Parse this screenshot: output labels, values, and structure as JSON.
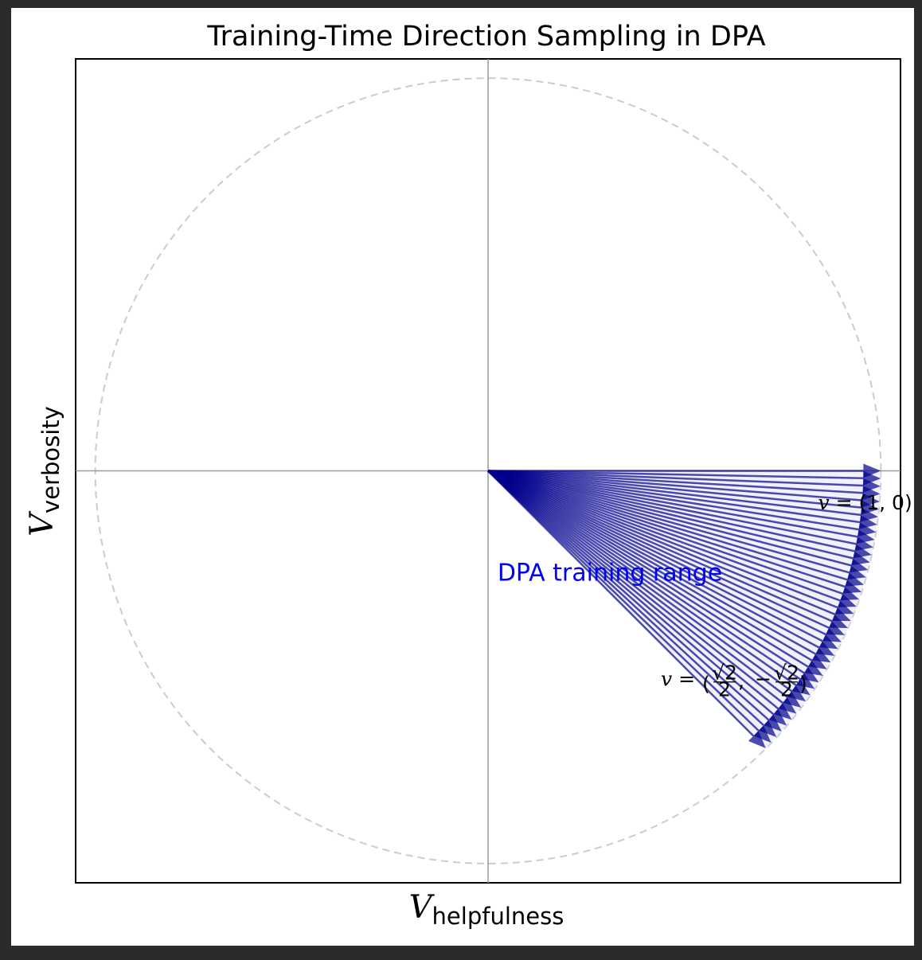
{
  "chart_data": {
    "type": "quiver",
    "title": "Training-Time Direction Sampling in DPA",
    "xlabel": {
      "main": "V",
      "sub": "helpfulness"
    },
    "ylabel": {
      "main": "V",
      "sub": "verbosity"
    },
    "xlim": [
      -1.05,
      1.05
    ],
    "ylim": [
      -1.05,
      1.05
    ],
    "unit_circle": true,
    "grid": false,
    "arrow_color": "#00008b",
    "range_color": "#0000ff",
    "fill_color": "#e6e6fa",
    "angle_range_deg": [
      -45,
      0
    ],
    "arrows": [
      {
        "angle_deg": 0.0,
        "x": 1.0,
        "y": 0.0
      },
      {
        "angle_deg": -1.125,
        "x": 0.9998,
        "y": -0.0196
      },
      {
        "angle_deg": -2.25,
        "x": 0.9992,
        "y": -0.0393
      },
      {
        "angle_deg": -3.375,
        "x": 0.9983,
        "y": -0.0589
      },
      {
        "angle_deg": -4.5,
        "x": 0.9969,
        "y": -0.0785
      },
      {
        "angle_deg": -5.625,
        "x": 0.9952,
        "y": -0.098
      },
      {
        "angle_deg": -6.75,
        "x": 0.9931,
        "y": -0.1175
      },
      {
        "angle_deg": -7.875,
        "x": 0.9906,
        "y": -0.137
      },
      {
        "angle_deg": -9.0,
        "x": 0.9877,
        "y": -0.1564
      },
      {
        "angle_deg": -10.125,
        "x": 0.9844,
        "y": -0.1758
      },
      {
        "angle_deg": -11.25,
        "x": 0.9808,
        "y": -0.1951
      },
      {
        "angle_deg": -12.375,
        "x": 0.9768,
        "y": -0.2143
      },
      {
        "angle_deg": -13.5,
        "x": 0.9724,
        "y": -0.2334
      },
      {
        "angle_deg": -14.625,
        "x": 0.9676,
        "y": -0.2525
      },
      {
        "angle_deg": -15.75,
        "x": 0.9625,
        "y": -0.2714
      },
      {
        "angle_deg": -16.875,
        "x": 0.9569,
        "y": -0.2903
      },
      {
        "angle_deg": -18.0,
        "x": 0.9511,
        "y": -0.309
      },
      {
        "angle_deg": -19.125,
        "x": 0.9448,
        "y": -0.3276
      },
      {
        "angle_deg": -20.25,
        "x": 0.9382,
        "y": -0.3461
      },
      {
        "angle_deg": -21.375,
        "x": 0.9312,
        "y": -0.3645
      },
      {
        "angle_deg": -22.5,
        "x": 0.9239,
        "y": -0.3827
      },
      {
        "angle_deg": -23.625,
        "x": 0.9162,
        "y": -0.4008
      },
      {
        "angle_deg": -24.75,
        "x": 0.9081,
        "y": -0.4187
      },
      {
        "angle_deg": -25.875,
        "x": 0.8998,
        "y": -0.4364
      },
      {
        "angle_deg": -27.0,
        "x": 0.891,
        "y": -0.454
      },
      {
        "angle_deg": -28.125,
        "x": 0.8819,
        "y": -0.4714
      },
      {
        "angle_deg": -29.25,
        "x": 0.8725,
        "y": -0.4886
      },
      {
        "angle_deg": -30.375,
        "x": 0.8627,
        "y": -0.5057
      },
      {
        "angle_deg": -31.5,
        "x": 0.8526,
        "y": -0.5225
      },
      {
        "angle_deg": -32.625,
        "x": 0.8422,
        "y": -0.5392
      },
      {
        "angle_deg": -33.75,
        "x": 0.8315,
        "y": -0.5556
      },
      {
        "angle_deg": -34.875,
        "x": 0.8204,
        "y": -0.5717
      },
      {
        "angle_deg": -36.0,
        "x": 0.809,
        "y": -0.5878
      },
      {
        "angle_deg": -37.125,
        "x": 0.7972,
        "y": -0.6035
      },
      {
        "angle_deg": -38.25,
        "x": 0.7852,
        "y": -0.6191
      },
      {
        "angle_deg": -39.375,
        "x": 0.7729,
        "y": -0.6344
      },
      {
        "angle_deg": -40.5,
        "x": 0.7604,
        "y": -0.6494
      },
      {
        "angle_deg": -41.625,
        "x": 0.7475,
        "y": -0.6643
      },
      {
        "angle_deg": -42.75,
        "x": 0.7343,
        "y": -0.6788
      },
      {
        "angle_deg": -43.875,
        "x": 0.7209,
        "y": -0.6931
      },
      {
        "angle_deg": -45.0,
        "x": 0.7071,
        "y": -0.7071
      }
    ],
    "annotations": {
      "endpoint_1": {
        "prefix": "v",
        "eq": " = (1, 0)",
        "x": 0.82,
        "y": -0.08
      },
      "endpoint_2": {
        "prefix": "v",
        "eq": " = ",
        "num1": "√2",
        "den1": "2",
        "comma": ",",
        "minus": "−",
        "num2": "√2",
        "den2": "2",
        "x": 0.45,
        "y": -0.53
      },
      "range_label": {
        "text": "DPA training range",
        "x": 0.3,
        "y": -0.28
      }
    }
  }
}
